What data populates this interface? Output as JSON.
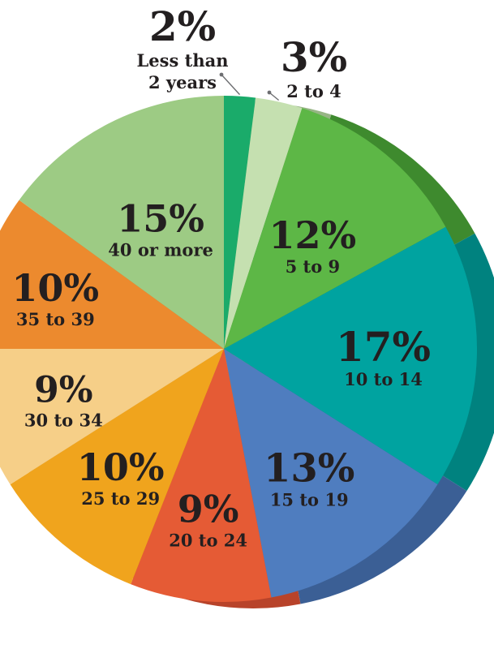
{
  "chart_data": {
    "type": "pie",
    "style": "3d",
    "legend": "none",
    "slices": [
      {
        "label": "Less than 2 years",
        "label_lines": [
          "Less than",
          "2 years"
        ],
        "value": 2,
        "value_label": "2%",
        "color": "#1aab6a",
        "side_color": "#12804f",
        "callout": true
      },
      {
        "label": "2 to 4",
        "label_lines": [
          "2 to 4"
        ],
        "value": 3,
        "value_label": "3%",
        "color": "#c5e0b0",
        "side_color": "#97b585",
        "callout": true
      },
      {
        "label": "5 to 9",
        "label_lines": [
          "5 to 9"
        ],
        "value": 12,
        "value_label": "12%",
        "color": "#5db746",
        "side_color": "#3e8a2e",
        "callout": false
      },
      {
        "label": "10 to 14",
        "label_lines": [
          "10 to 14"
        ],
        "value": 17,
        "value_label": "17%",
        "color": "#00a3a0",
        "side_color": "#00827f",
        "callout": false
      },
      {
        "label": "15 to 19",
        "label_lines": [
          "15 to 19"
        ],
        "value": 13,
        "value_label": "13%",
        "color": "#4f7dbf",
        "side_color": "#3b5f95",
        "callout": false
      },
      {
        "label": "20 to 24",
        "label_lines": [
          "20 to 24"
        ],
        "value": 9,
        "value_label": "9%",
        "color": "#e55b35",
        "side_color": "#b8432a",
        "callout": false
      },
      {
        "label": "25 to 29",
        "label_lines": [
          "25 to 29"
        ],
        "value": 10,
        "value_label": "10%",
        "color": "#f0a41d",
        "side_color": "#c08214",
        "callout": false
      },
      {
        "label": "30 to 34",
        "label_lines": [
          "30 to 34"
        ],
        "value": 9,
        "value_label": "9%",
        "color": "#f6cf88",
        "side_color": "#c9a560",
        "callout": false
      },
      {
        "label": "35 to 39",
        "label_lines": [
          "35 to 39"
        ],
        "value": 10,
        "value_label": "10%",
        "color": "#ec8a2e",
        "side_color": "#bf6c1f",
        "callout": false
      },
      {
        "label": "40 or more",
        "label_lines": [
          "40 or more"
        ],
        "value": 15,
        "value_label": "15%",
        "color": "#9dcb84",
        "side_color": "#7aa663",
        "callout": false
      }
    ]
  }
}
